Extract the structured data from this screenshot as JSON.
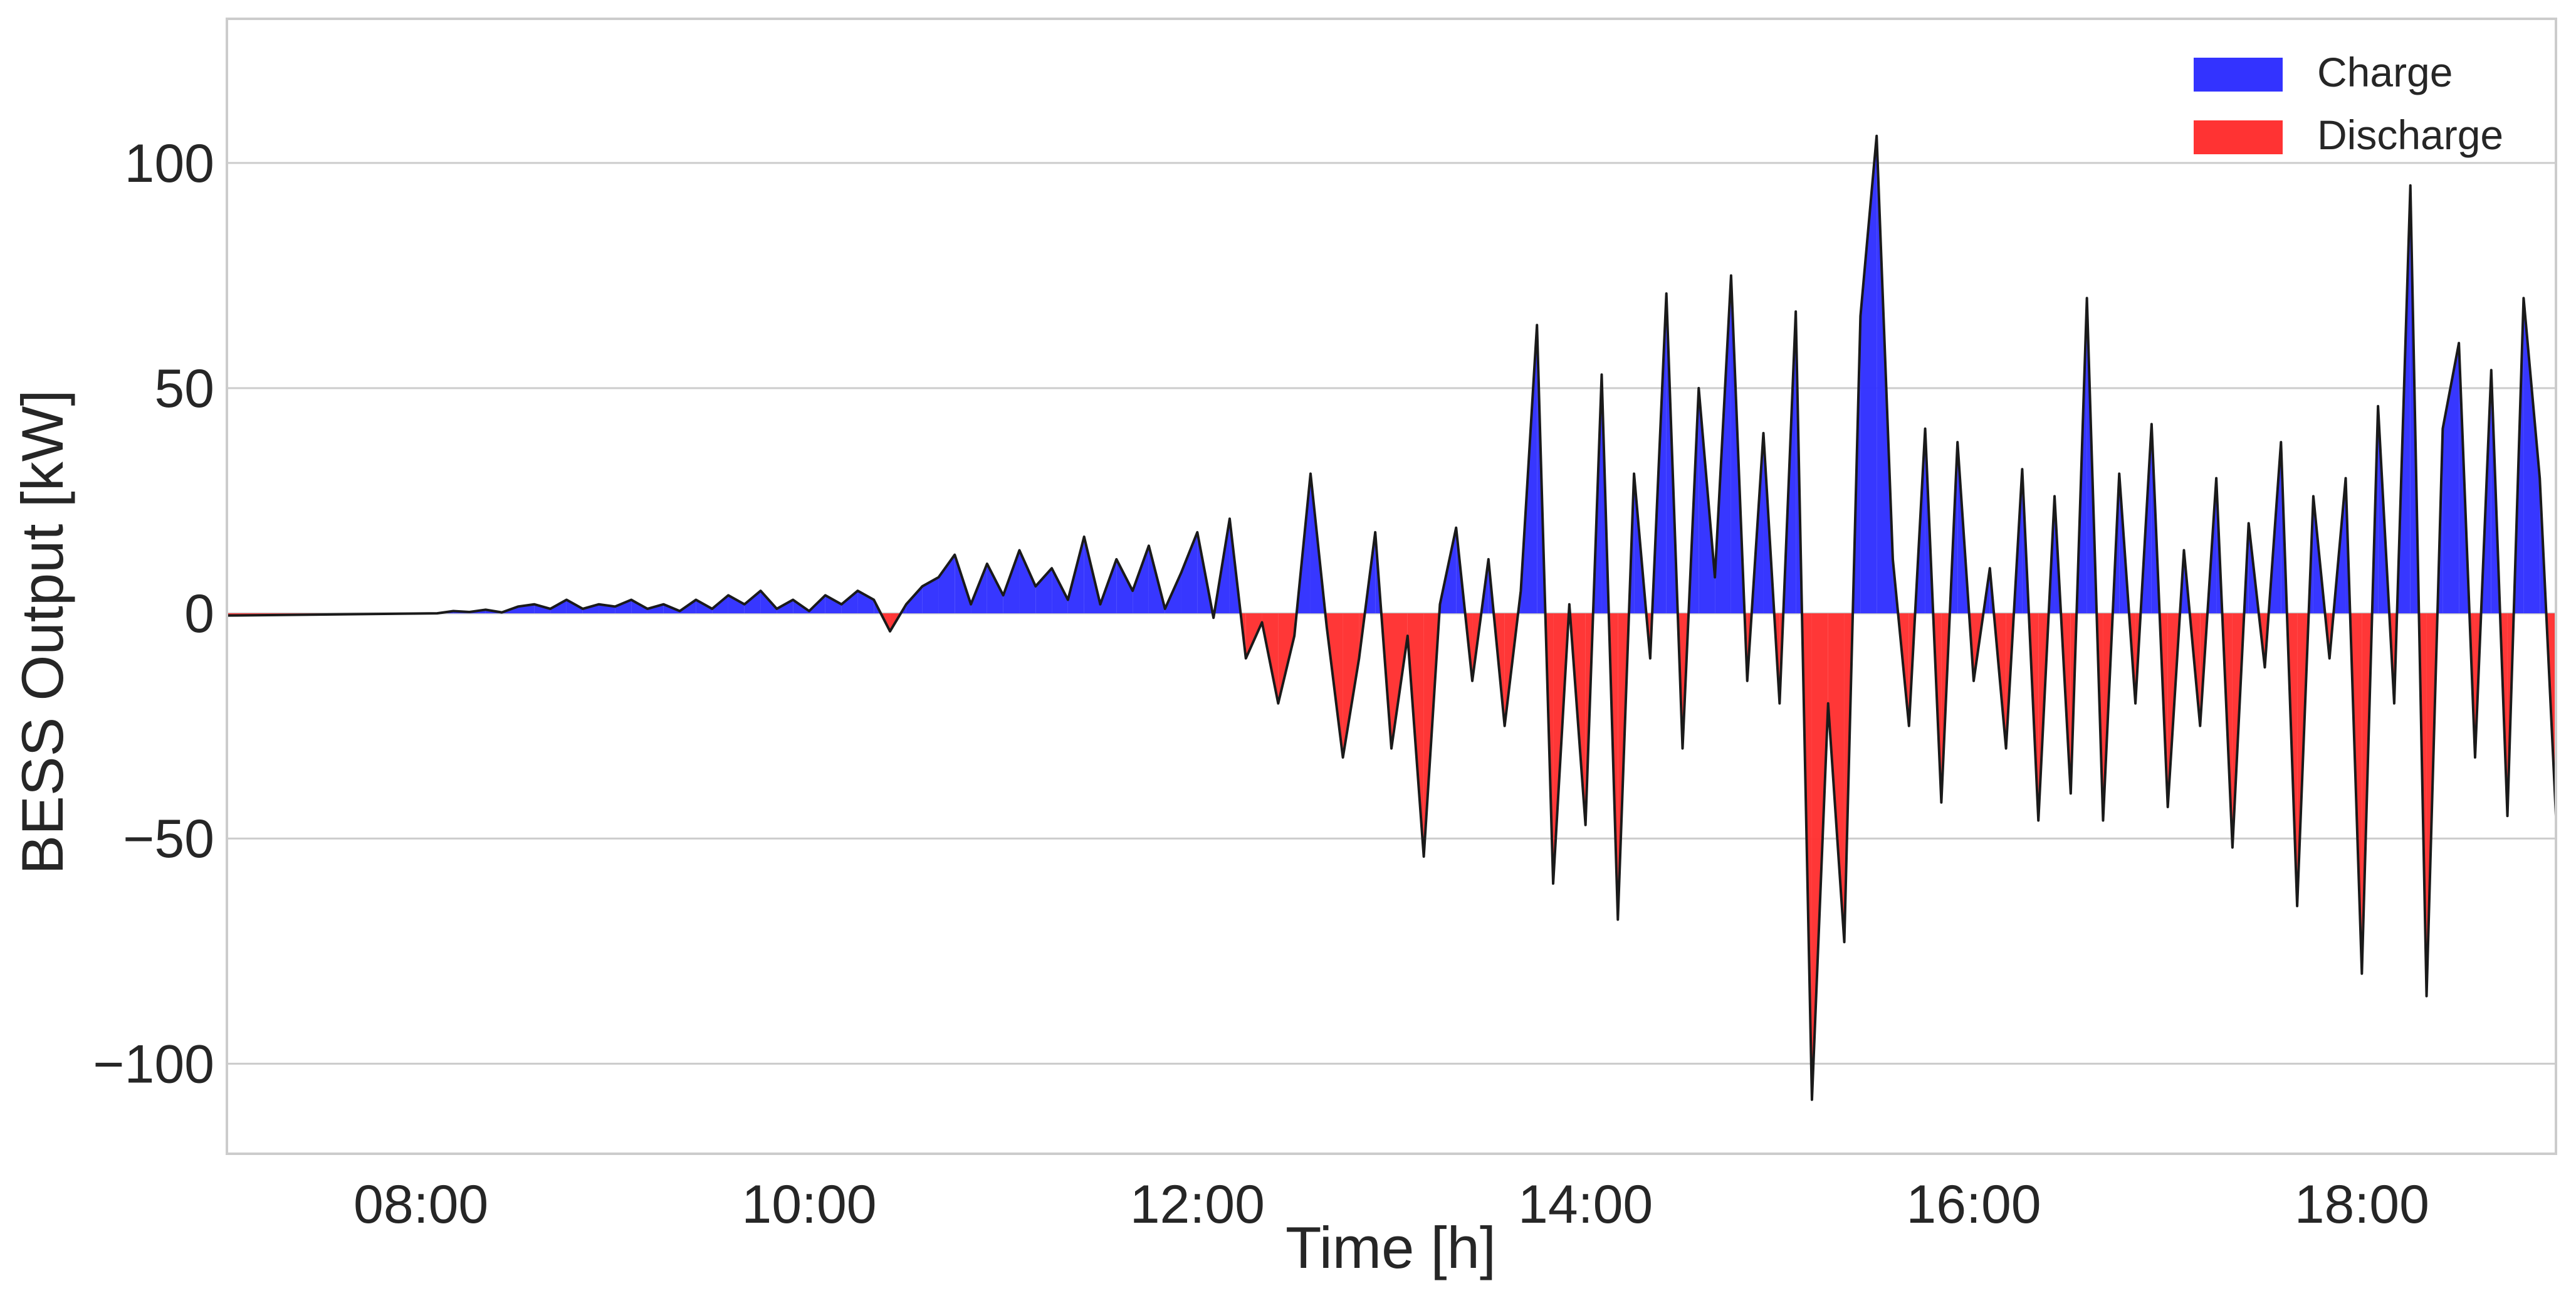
{
  "chart_data": {
    "type": "area",
    "xlabel": "Time [h]",
    "ylabel": "BESS Output [kW]",
    "xlim": [
      "07:00",
      "19:00"
    ],
    "ylim": [
      -120,
      132
    ],
    "x_ticks": [
      "08:00",
      "10:00",
      "12:00",
      "14:00",
      "16:00",
      "18:00"
    ],
    "y_ticks": [
      -100,
      -50,
      0,
      50,
      100
    ],
    "y_tick_labels": [
      "−100",
      "−50",
      "0",
      "50",
      "100"
    ],
    "grid": "horizontal",
    "legend_position": "top-right",
    "colors": {
      "charge": "#3333ff",
      "discharge": "#ff3333",
      "line": "#1a1a1a",
      "grid": "#cccccc",
      "frame": "#cccccc"
    },
    "legend": [
      {
        "key": "charge",
        "label": "Charge"
      },
      {
        "key": "discharge",
        "label": "Discharge"
      }
    ],
    "series": [
      {
        "points": [
          [
            "07:00",
            -0.5
          ],
          [
            "08:05",
            0
          ],
          [
            "08:10",
            0.5
          ],
          [
            "08:15",
            0.3
          ],
          [
            "08:20",
            0.8
          ],
          [
            "08:25",
            0.2
          ],
          [
            "08:30",
            1.5
          ],
          [
            "08:35",
            2
          ],
          [
            "08:40",
            1
          ],
          [
            "08:45",
            3
          ],
          [
            "08:50",
            1
          ],
          [
            "08:55",
            2
          ],
          [
            "09:00",
            1.5
          ],
          [
            "09:05",
            3
          ],
          [
            "09:10",
            1
          ],
          [
            "09:15",
            2
          ],
          [
            "09:20",
            0.5
          ],
          [
            "09:25",
            3
          ],
          [
            "09:30",
            1
          ],
          [
            "09:35",
            4
          ],
          [
            "09:40",
            2
          ],
          [
            "09:45",
            5
          ],
          [
            "09:50",
            1
          ],
          [
            "09:55",
            3
          ],
          [
            "10:00",
            0.5
          ],
          [
            "10:05",
            4
          ],
          [
            "10:10",
            2
          ],
          [
            "10:15",
            5
          ],
          [
            "10:20",
            3
          ],
          [
            "10:25",
            -4
          ],
          [
            "10:30",
            2
          ],
          [
            "10:35",
            6
          ],
          [
            "10:40",
            8
          ],
          [
            "10:45",
            13
          ],
          [
            "10:50",
            2
          ],
          [
            "10:55",
            11
          ],
          [
            "11:00",
            4
          ],
          [
            "11:05",
            14
          ],
          [
            "11:10",
            6
          ],
          [
            "11:15",
            10
          ],
          [
            "11:20",
            3
          ],
          [
            "11:25",
            17
          ],
          [
            "11:30",
            2
          ],
          [
            "11:35",
            12
          ],
          [
            "11:40",
            5
          ],
          [
            "11:45",
            15
          ],
          [
            "11:50",
            1
          ],
          [
            "11:55",
            9
          ],
          [
            "12:00",
            18
          ],
          [
            "12:05",
            -1
          ],
          [
            "12:10",
            21
          ],
          [
            "12:15",
            -10
          ],
          [
            "12:20",
            -2
          ],
          [
            "12:25",
            -20
          ],
          [
            "12:30",
            -5
          ],
          [
            "12:35",
            31
          ],
          [
            "12:40",
            -3
          ],
          [
            "12:45",
            -32
          ],
          [
            "12:50",
            -10
          ],
          [
            "12:55",
            18
          ],
          [
            "13:00",
            -30
          ],
          [
            "13:05",
            -5
          ],
          [
            "13:10",
            -54
          ],
          [
            "13:15",
            2
          ],
          [
            "13:20",
            19
          ],
          [
            "13:25",
            -15
          ],
          [
            "13:30",
            12
          ],
          [
            "13:35",
            -25
          ],
          [
            "13:40",
            5
          ],
          [
            "13:45",
            64
          ],
          [
            "13:50",
            -60
          ],
          [
            "13:55",
            2
          ],
          [
            "14:00",
            -47
          ],
          [
            "14:05",
            53
          ],
          [
            "14:10",
            -68
          ],
          [
            "14:15",
            31
          ],
          [
            "14:20",
            -10
          ],
          [
            "14:25",
            71
          ],
          [
            "14:30",
            -30
          ],
          [
            "14:35",
            50
          ],
          [
            "14:40",
            8
          ],
          [
            "14:45",
            75
          ],
          [
            "14:50",
            -15
          ],
          [
            "14:55",
            40
          ],
          [
            "15:00",
            -20
          ],
          [
            "15:05",
            67
          ],
          [
            "15:10",
            -108
          ],
          [
            "15:15",
            -20
          ],
          [
            "15:20",
            -73
          ],
          [
            "15:25",
            66
          ],
          [
            "15:30",
            106
          ],
          [
            "15:35",
            12
          ],
          [
            "15:40",
            -25
          ],
          [
            "15:45",
            41
          ],
          [
            "15:50",
            -42
          ],
          [
            "15:55",
            38
          ],
          [
            "16:00",
            -15
          ],
          [
            "16:05",
            10
          ],
          [
            "16:10",
            -30
          ],
          [
            "16:15",
            32
          ],
          [
            "16:20",
            -46
          ],
          [
            "16:25",
            26
          ],
          [
            "16:30",
            -40
          ],
          [
            "16:35",
            70
          ],
          [
            "16:40",
            -46
          ],
          [
            "16:45",
            31
          ],
          [
            "16:50",
            -20
          ],
          [
            "16:55",
            42
          ],
          [
            "17:00",
            -43
          ],
          [
            "17:05",
            14
          ],
          [
            "17:10",
            -25
          ],
          [
            "17:15",
            30
          ],
          [
            "17:20",
            -52
          ],
          [
            "17:25",
            20
          ],
          [
            "17:30",
            -12
          ],
          [
            "17:35",
            38
          ],
          [
            "17:40",
            -65
          ],
          [
            "17:45",
            26
          ],
          [
            "17:50",
            -10
          ],
          [
            "17:55",
            30
          ],
          [
            "18:00",
            -80
          ],
          [
            "18:05",
            46
          ],
          [
            "18:10",
            -20
          ],
          [
            "18:15",
            95
          ],
          [
            "18:20",
            -85
          ],
          [
            "18:25",
            41
          ],
          [
            "18:30",
            60
          ],
          [
            "18:35",
            -32
          ],
          [
            "18:40",
            54
          ],
          [
            "18:45",
            -45
          ],
          [
            "18:50",
            70
          ],
          [
            "18:55",
            30
          ],
          [
            "19:00",
            -45
          ]
        ]
      }
    ]
  }
}
